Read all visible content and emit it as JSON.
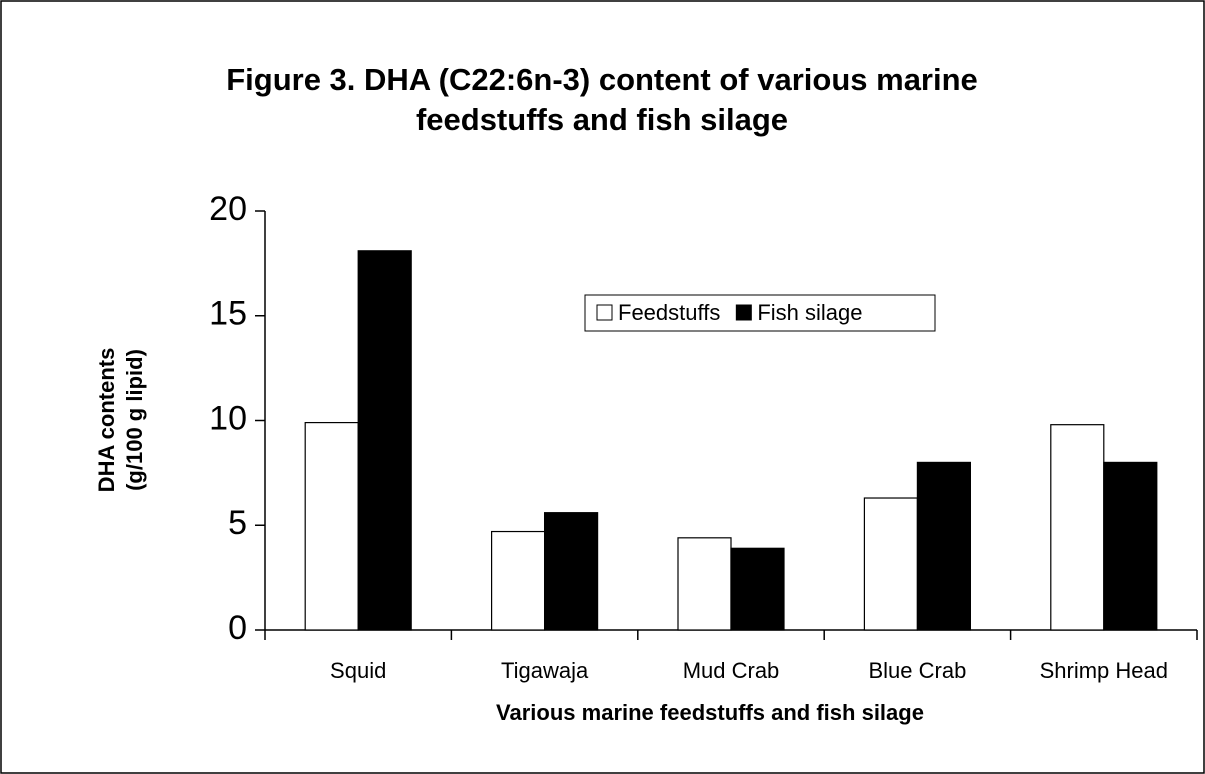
{
  "chart_data": {
    "type": "bar",
    "title": [
      "Figure 3. DHA (C22:6n-3) content of various marine",
      "feedstuffs and fish silage"
    ],
    "y_label": [
      "DHA contents",
      "(g/100 g lipid)"
    ],
    "x_label": "Various marine feedstuffs and fish silage",
    "categories": [
      "Squid",
      "Tigawaja",
      "Mud Crab",
      "Blue Crab",
      "Shrimp Head"
    ],
    "series": [
      {
        "name": "Feedstuffs",
        "color": "#ffffff",
        "values": [
          9.9,
          4.7,
          4.4,
          6.3,
          9.8
        ]
      },
      {
        "name": "Fish silage",
        "color": "#000000",
        "values": [
          18.1,
          5.6,
          3.9,
          8.0,
          8.0
        ]
      }
    ],
    "ylim": [
      0,
      20
    ],
    "yticks": [
      0,
      5,
      10,
      15,
      20
    ],
    "grid": false,
    "legend": "center"
  }
}
